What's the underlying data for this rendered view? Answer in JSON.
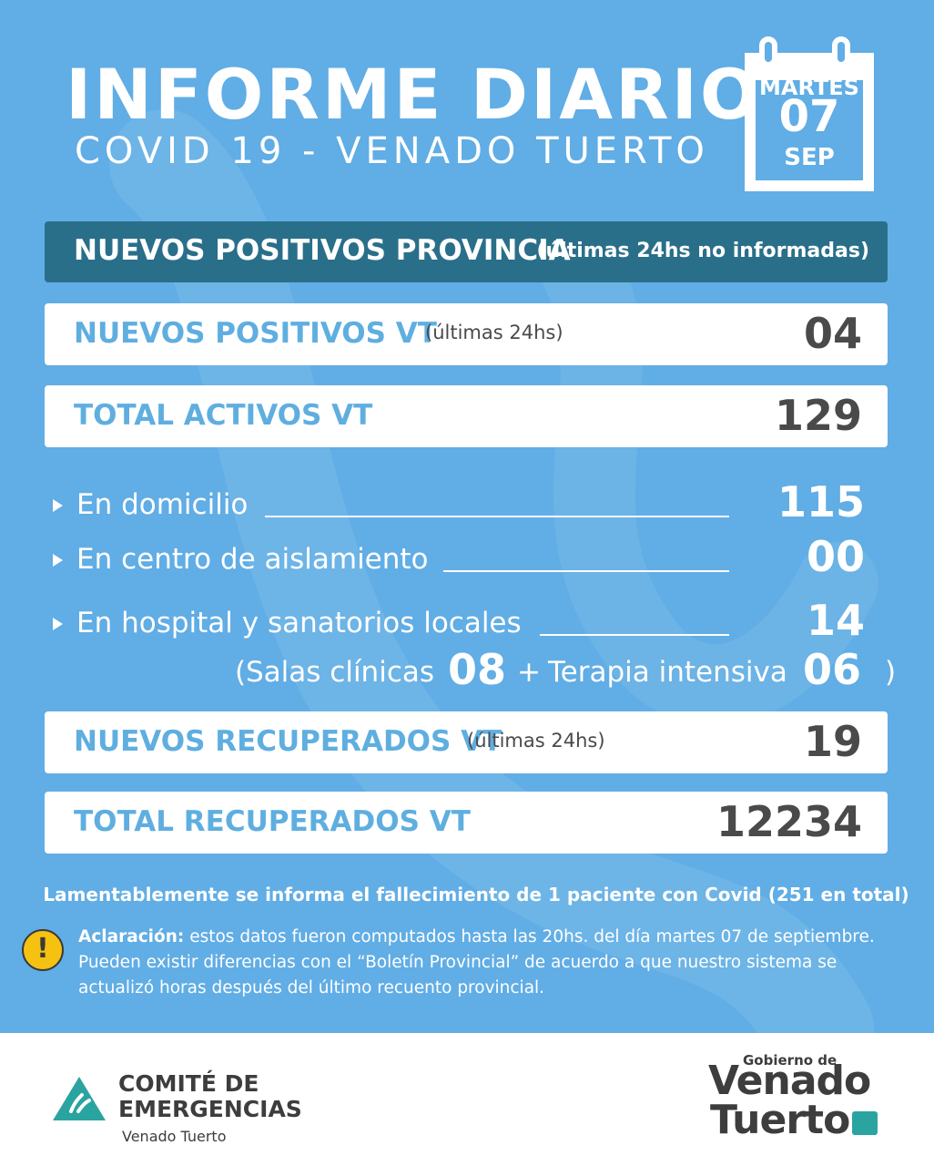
{
  "header": {
    "title": "INFORME DIARIO",
    "subtitle": "COVID 19 - VENADO TUERTO"
  },
  "calendar": {
    "weekday": "MARTES",
    "day": "07",
    "month": "SEP"
  },
  "provincia": {
    "label": "NUEVOS POSITIVOS PROVINCIA",
    "note": "(últimas 24hs no informadas)"
  },
  "nuevos_positivos": {
    "label": "NUEVOS POSITIVOS VT",
    "note": "(últimas 24hs)",
    "value": "04"
  },
  "total_activos": {
    "label": "TOTAL ACTIVOS VT",
    "value": "129"
  },
  "breakdown": [
    {
      "label": "En domicilio",
      "value": "115"
    },
    {
      "label": "En centro de aislamiento",
      "value": "00"
    },
    {
      "label": "En hospital y sanatorios locales",
      "value": "14"
    }
  ],
  "salas": {
    "open": "(",
    "label": "Salas clínicas",
    "value": "08",
    "plus": "+",
    "terapia_label": "Terapia intensiva",
    "terapia_value": "06",
    "close": ")"
  },
  "nuevos_recuperados": {
    "label": "NUEVOS RECUPERADOS VT",
    "note": "(últimas 24hs)",
    "value": "19"
  },
  "total_recuperados": {
    "label": "TOTAL RECUPERADOS VT",
    "value": "12234"
  },
  "deceased_notice": "Lamentablemente se informa el fallecimiento de 1 paciente con Covid (251 en total)",
  "disclaimer": {
    "title": "Aclaración:",
    "text": "estos datos fueron computados hasta las 20hs. del día martes 07 de septiembre. Pueden existir diferencias con el “Boletín Provincial” de acuerdo a que nuestro sistema se actualizó horas después del último recuento provincial."
  },
  "footer": {
    "comite_line1": "COMITÉ DE",
    "comite_line2": "EMERGENCIAS",
    "comite_sub": "Venado Tuerto",
    "gobierno": "Gobierno de",
    "venado": "Venado",
    "tuerto": "Tuerto"
  },
  "colors": {
    "background": "#61ade5",
    "header_bar": "#2a6f8a",
    "label_blue": "#5faee0",
    "value_gray": "#4a4a4a",
    "alert_yellow": "#f6c212",
    "logo_teal": "#2aa4a0"
  }
}
